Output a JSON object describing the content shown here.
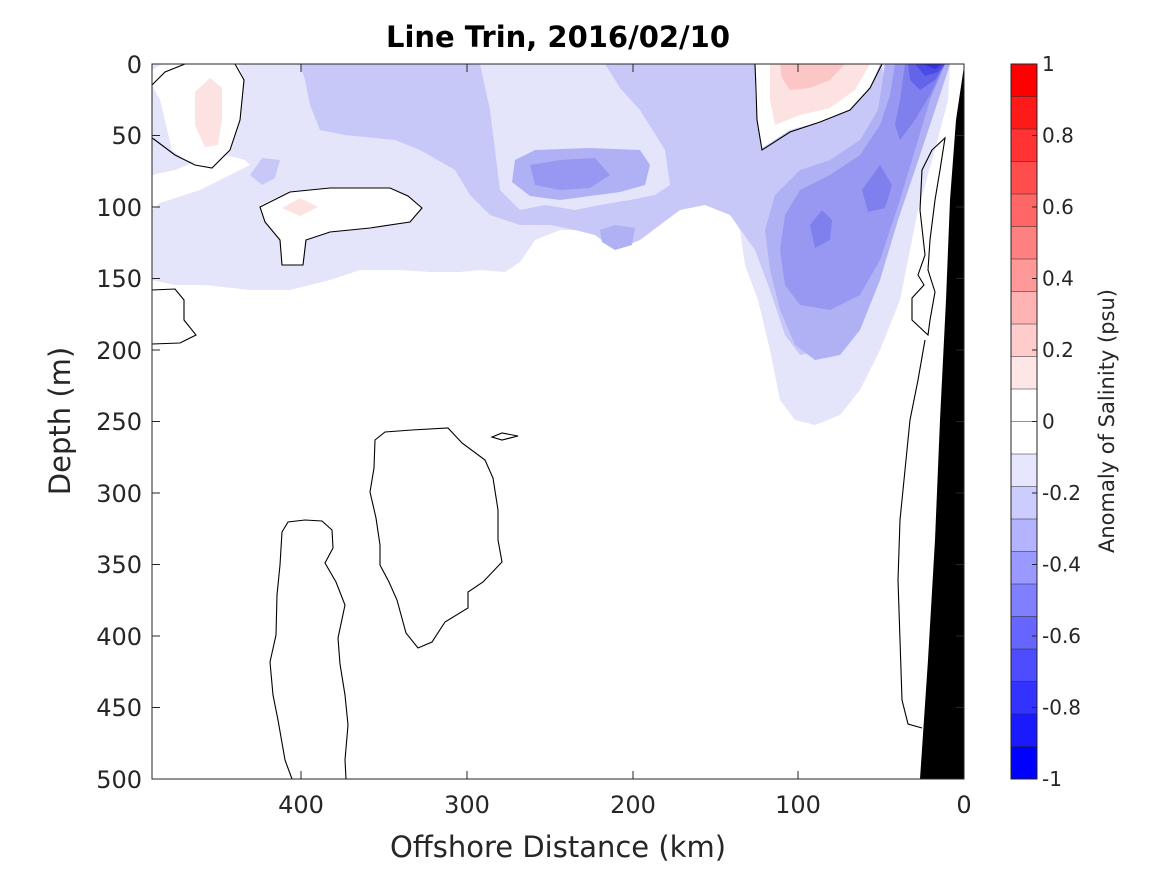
{
  "chart_data": {
    "type": "contour",
    "title": "Line Trin, 2016/02/10",
    "xlabel": "Offshore Distance (km)",
    "ylabel": "Depth (m)",
    "xlim": [
      490,
      0
    ],
    "ylim": [
      0,
      500
    ],
    "x_reversed": true,
    "y_reversed": true,
    "x_ticks": [
      "400",
      "300",
      "200",
      "100",
      "0"
    ],
    "y_ticks": [
      "0",
      "50",
      "100",
      "150",
      "200",
      "250",
      "300",
      "350",
      "400",
      "450",
      "500"
    ],
    "grid": false,
    "colorbar": {
      "label": "Anomaly of Salinity (psu)",
      "limits": [
        -1,
        1
      ],
      "tick_labels": [
        "1",
        "0.8",
        "0.6",
        "0.4",
        "0.2",
        "0",
        "-0.2",
        "-0.4",
        "-0.6",
        "-0.8",
        "-1"
      ],
      "levels": [
        1.0,
        0.9,
        0.8,
        0.7,
        0.6,
        0.5,
        0.4,
        0.3,
        0.2,
        0.1,
        0.0,
        -0.1,
        -0.2,
        -0.3,
        -0.4,
        -0.5,
        -0.6,
        -0.7,
        -0.8,
        -0.9,
        -1.0
      ],
      "colors": [
        "#ff0000",
        "#ff1a1a",
        "#ff3333",
        "#ff4d4d",
        "#ff6666",
        "#ff8080",
        "#ff9999",
        "#ffb3b3",
        "#ffcccc",
        "#ffe6e6",
        "#ffffff",
        "#ffffff",
        "#e6e6ff",
        "#ccccff",
        "#b3b3ff",
        "#9999ff",
        "#8080ff",
        "#6666ff",
        "#4d4dff",
        "#3333ff",
        "#1a1aff",
        "#0000ff"
      ]
    },
    "contour_level_shown": 0,
    "bathymetry_color": "#000000"
  }
}
